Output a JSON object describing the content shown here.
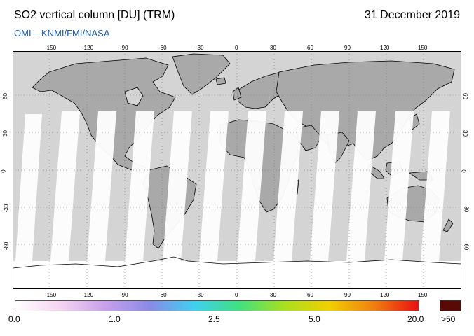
{
  "header": {
    "title": "SO2 vertical column [DU] (TRM)",
    "date": "31 December 2019",
    "source": "OMI  –  KNMI/FMI/NASA"
  },
  "map": {
    "projection": "equirectangular",
    "lon_ticks": [
      "-150",
      "-120",
      "-90",
      "-60",
      "-30",
      "0",
      "30",
      "60",
      "90",
      "120",
      "150"
    ],
    "lat_ticks": [
      "60",
      "30",
      "0",
      "-30",
      "-60"
    ],
    "grid": "dotted",
    "colors": {
      "ocean_no_data": "#d4d4d4",
      "land_no_data": "#a9a9a9",
      "low_value": "#ffffff",
      "coastline": "#000000"
    }
  },
  "colorbar": {
    "labels": [
      "0.0",
      "1.0",
      "2.5",
      "5.0",
      "20.0"
    ],
    "max_label": ">50",
    "max_color": "#5a0a06",
    "stops": [
      "#ffffff",
      "#f4d4f0",
      "#c8a0ea",
      "#8a8ae6",
      "#3fd0f0",
      "#40e080",
      "#a8e020",
      "#f0d000",
      "#f08010",
      "#e81010"
    ]
  }
}
